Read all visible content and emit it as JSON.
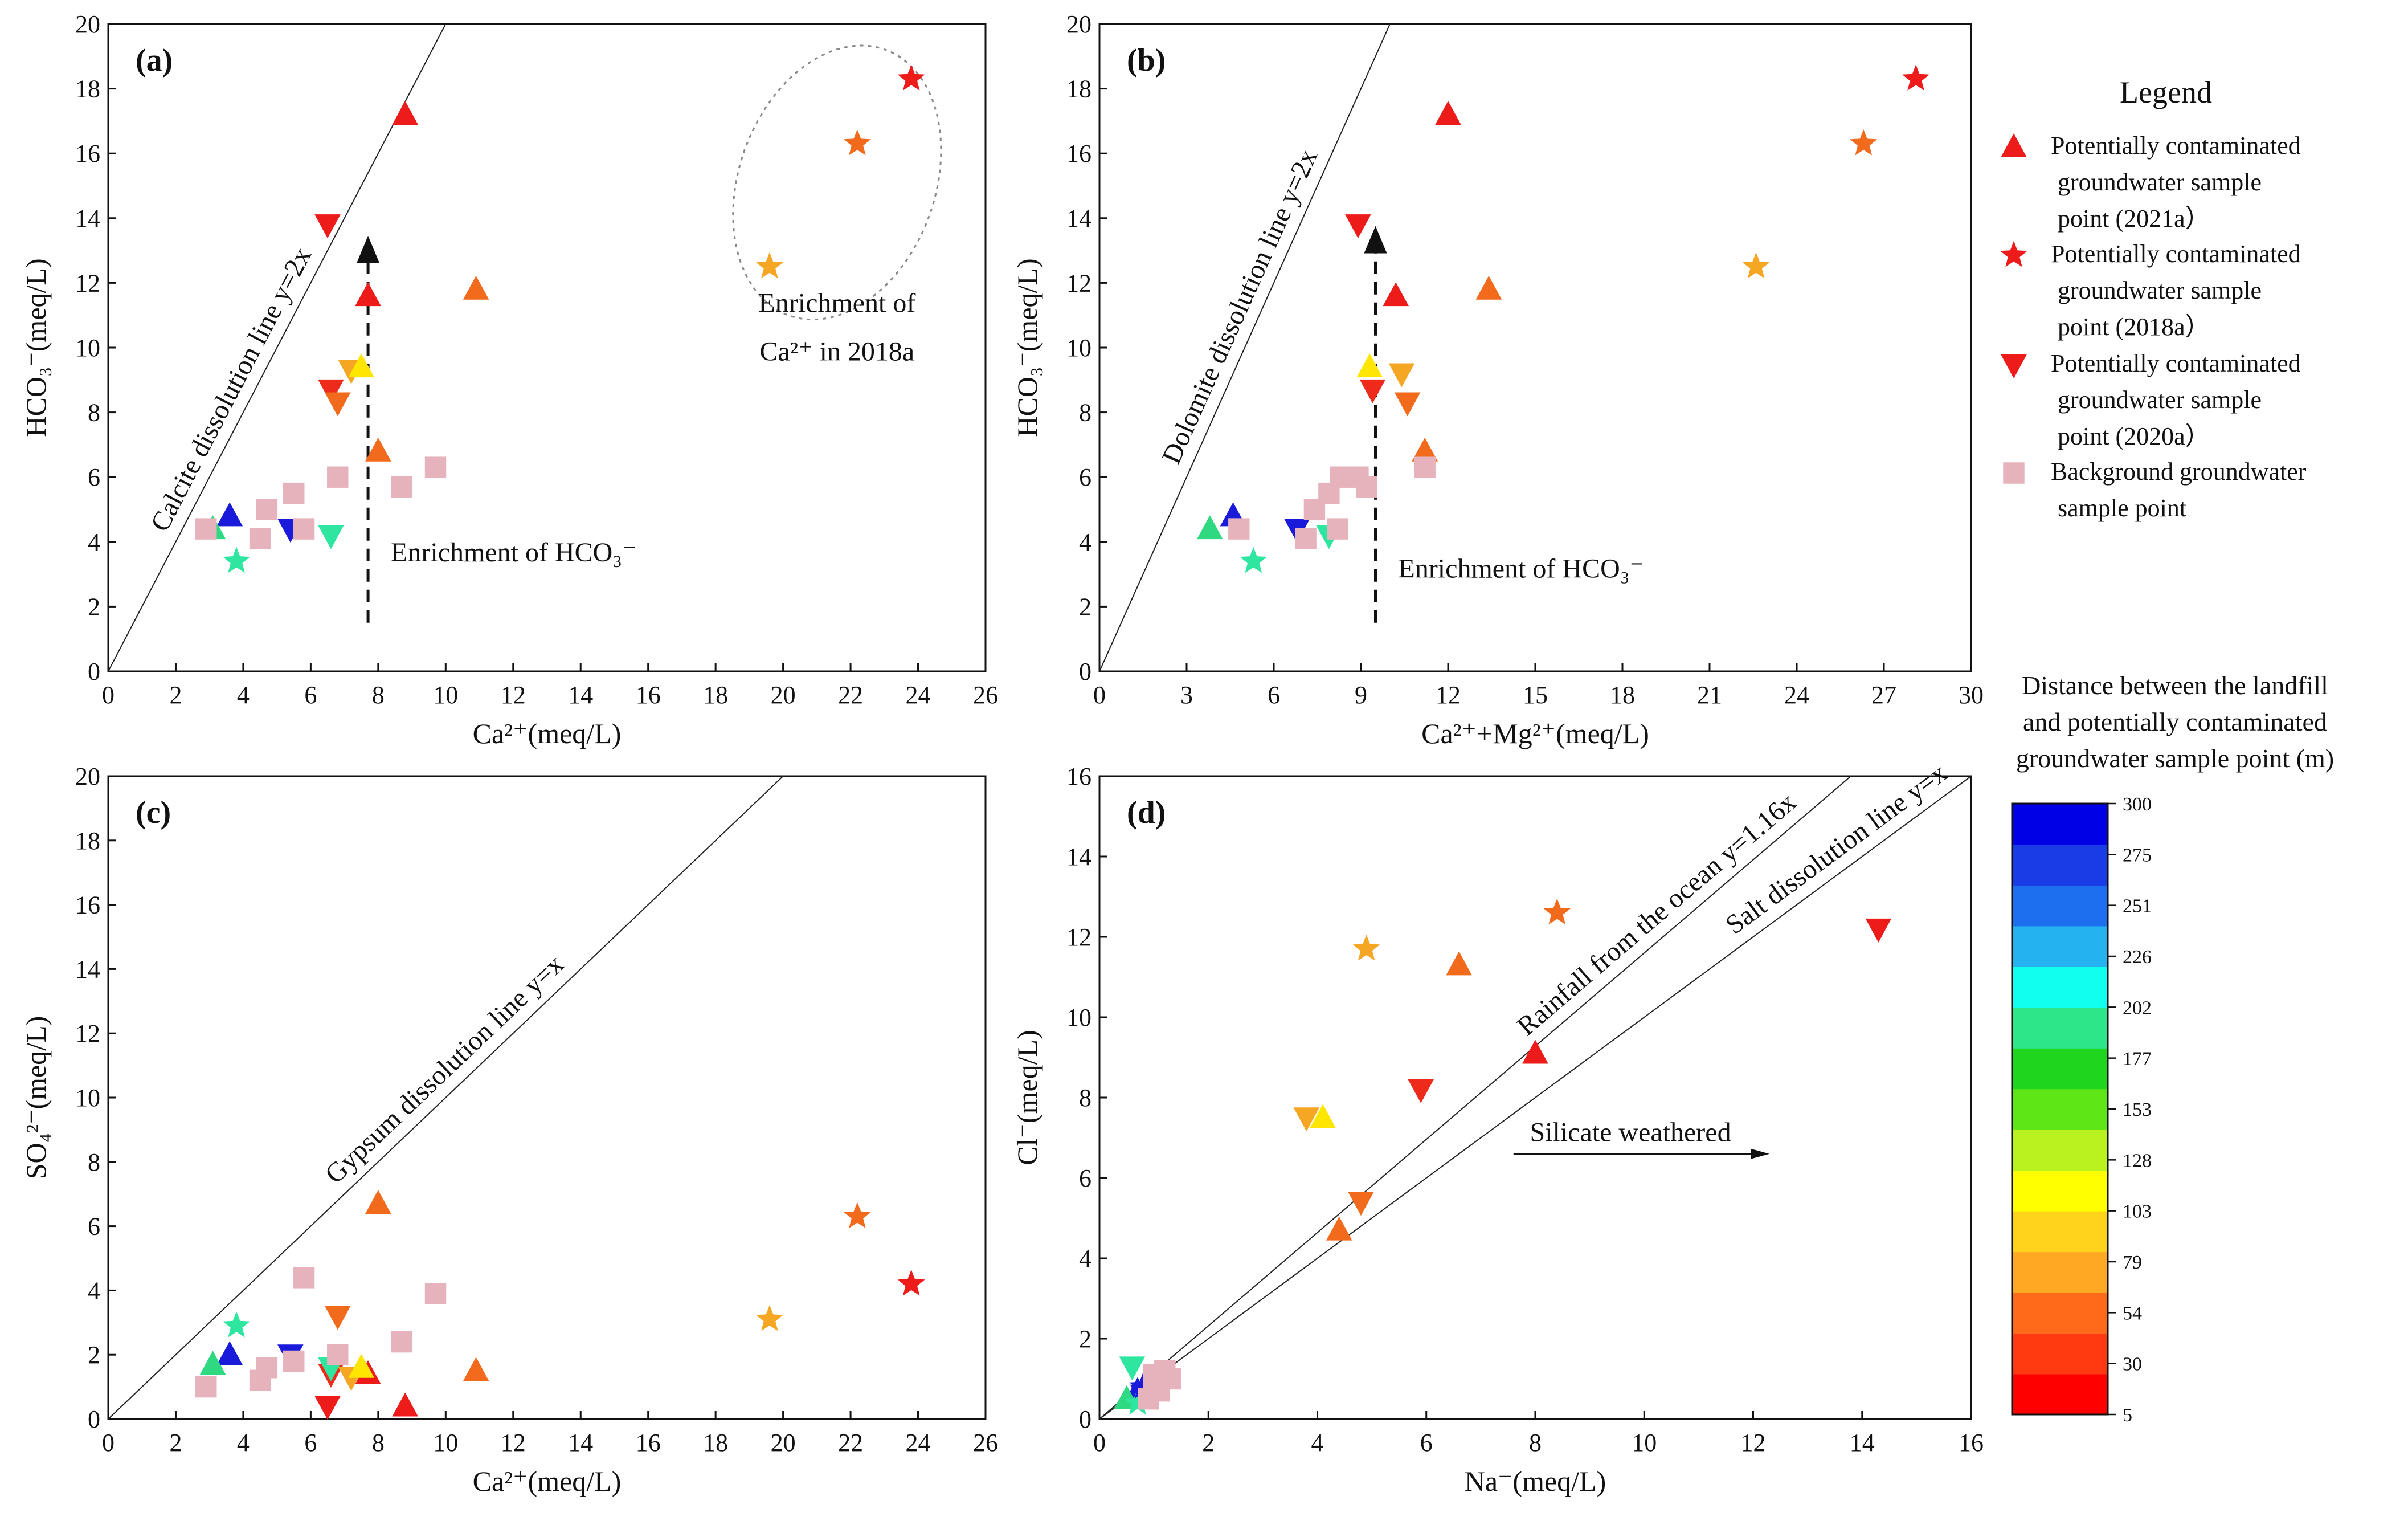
{
  "chart_data": [
    {
      "id": "a",
      "type": "scatter",
      "panel_label": "(a)",
      "xlabel": "Ca²⁺(meq/L)",
      "ylabel": "HCO₃⁻(meq/L)",
      "xlim": [
        0,
        26
      ],
      "ylim": [
        0,
        20
      ],
      "xticks": [
        0,
        2,
        4,
        6,
        8,
        10,
        12,
        14,
        16,
        18,
        20,
        22,
        24,
        26
      ],
      "yticks": [
        0,
        2,
        4,
        6,
        8,
        10,
        12,
        14,
        16,
        18,
        20
      ],
      "reference_lines": [
        {
          "label": "Calcite dissolution line y=2x",
          "slope": 2
        }
      ],
      "annotations": [
        {
          "text": "Enrichment of HCO₃⁻",
          "arrow": "vertical-up"
        },
        {
          "text_line1": "Enrichment of",
          "text_line2": "Ca²⁺ in 2018a",
          "enclosure": "ellipse"
        }
      ],
      "points": [
        {
          "x": 8.8,
          "y": 17.2,
          "marker": "triangle-up",
          "color": "#ee1b1b"
        },
        {
          "x": 7.7,
          "y": 11.6,
          "marker": "triangle-up",
          "color": "#ee1b1b"
        },
        {
          "x": 6.5,
          "y": 13.8,
          "marker": "triangle-down",
          "color": "#ee1b1b"
        },
        {
          "x": 10.9,
          "y": 11.8,
          "marker": "triangle-up",
          "color": "#f26a1b"
        },
        {
          "x": 8.0,
          "y": 6.8,
          "marker": "triangle-up",
          "color": "#f26a1b"
        },
        {
          "x": 6.6,
          "y": 8.7,
          "marker": "triangle-down",
          "color": "#ee2a1b"
        },
        {
          "x": 6.8,
          "y": 8.3,
          "marker": "triangle-down",
          "color": "#f26a1b"
        },
        {
          "x": 7.2,
          "y": 9.3,
          "marker": "triangle-down",
          "color": "#f5a623"
        },
        {
          "x": 7.5,
          "y": 9.4,
          "marker": "triangle-up",
          "color": "#ffe600"
        },
        {
          "x": 3.6,
          "y": 4.8,
          "marker": "triangle-up",
          "color": "#1a1adb"
        },
        {
          "x": 3.1,
          "y": 4.4,
          "marker": "triangle-up",
          "color": "#2ed982"
        },
        {
          "x": 5.4,
          "y": 4.4,
          "marker": "triangle-down",
          "color": "#1a1adb"
        },
        {
          "x": 6.6,
          "y": 4.2,
          "marker": "triangle-down",
          "color": "#2ee6a0"
        },
        {
          "x": 23.8,
          "y": 18.3,
          "marker": "star",
          "color": "#ee1b1b"
        },
        {
          "x": 22.2,
          "y": 16.3,
          "marker": "star",
          "color": "#f26a1b"
        },
        {
          "x": 19.6,
          "y": 12.5,
          "marker": "star",
          "color": "#f5a623"
        },
        {
          "x": 3.8,
          "y": 3.4,
          "marker": "star",
          "color": "#2ee6a0"
        },
        {
          "x": 2.9,
          "y": 4.4,
          "marker": "square",
          "color": "#e6b3bc"
        },
        {
          "x": 4.5,
          "y": 4.1,
          "marker": "square",
          "color": "#e6b3bc"
        },
        {
          "x": 4.7,
          "y": 5.0,
          "marker": "square",
          "color": "#e6b3bc"
        },
        {
          "x": 5.5,
          "y": 5.5,
          "marker": "square",
          "color": "#e6b3bc"
        },
        {
          "x": 5.8,
          "y": 4.4,
          "marker": "square",
          "color": "#e6b3bc"
        },
        {
          "x": 6.8,
          "y": 6.0,
          "marker": "square",
          "color": "#e6b3bc"
        },
        {
          "x": 8.7,
          "y": 5.7,
          "marker": "square",
          "color": "#e6b3bc"
        },
        {
          "x": 9.7,
          "y": 6.3,
          "marker": "square",
          "color": "#e6b3bc"
        }
      ]
    },
    {
      "id": "b",
      "type": "scatter",
      "panel_label": "(b)",
      "xlabel": "Ca²⁺+Mg²⁺(meq/L)",
      "ylabel": "HCO₃⁻(meq/L)",
      "xlim": [
        0,
        30
      ],
      "ylim": [
        0,
        20
      ],
      "xticks": [
        0,
        3,
        6,
        9,
        12,
        15,
        18,
        21,
        24,
        27,
        30
      ],
      "yticks": [
        0,
        2,
        4,
        6,
        8,
        10,
        12,
        14,
        16,
        18,
        20
      ],
      "reference_lines": [
        {
          "label": "Dolomite dissolution line y=2x",
          "slope": 2
        }
      ],
      "annotations": [
        {
          "text": "Enrichment of HCO₃⁻",
          "arrow": "vertical-up"
        }
      ],
      "points": [
        {
          "x": 12.0,
          "y": 17.2,
          "marker": "triangle-up",
          "color": "#ee1b1b"
        },
        {
          "x": 10.2,
          "y": 11.6,
          "marker": "triangle-up",
          "color": "#ee1b1b"
        },
        {
          "x": 8.9,
          "y": 13.8,
          "marker": "triangle-down",
          "color": "#ee1b1b"
        },
        {
          "x": 13.4,
          "y": 11.8,
          "marker": "triangle-up",
          "color": "#f26a1b"
        },
        {
          "x": 11.2,
          "y": 6.8,
          "marker": "triangle-up",
          "color": "#f26a1b"
        },
        {
          "x": 9.4,
          "y": 8.7,
          "marker": "triangle-down",
          "color": "#ee2a1b"
        },
        {
          "x": 10.6,
          "y": 8.3,
          "marker": "triangle-down",
          "color": "#f26a1b"
        },
        {
          "x": 10.4,
          "y": 9.2,
          "marker": "triangle-down",
          "color": "#f5a623"
        },
        {
          "x": 9.3,
          "y": 9.4,
          "marker": "triangle-up",
          "color": "#ffe600"
        },
        {
          "x": 4.6,
          "y": 4.8,
          "marker": "triangle-up",
          "color": "#1a1adb"
        },
        {
          "x": 3.8,
          "y": 4.4,
          "marker": "triangle-up",
          "color": "#2ed982"
        },
        {
          "x": 6.8,
          "y": 4.4,
          "marker": "triangle-down",
          "color": "#1a1adb"
        },
        {
          "x": 7.9,
          "y": 4.2,
          "marker": "triangle-down",
          "color": "#2ee6a0"
        },
        {
          "x": 28.1,
          "y": 18.3,
          "marker": "star",
          "color": "#ee1b1b"
        },
        {
          "x": 26.3,
          "y": 16.3,
          "marker": "star",
          "color": "#f26a1b"
        },
        {
          "x": 22.6,
          "y": 12.5,
          "marker": "star",
          "color": "#f5a623"
        },
        {
          "x": 5.3,
          "y": 3.4,
          "marker": "star",
          "color": "#2ee6a0"
        },
        {
          "x": 4.8,
          "y": 4.4,
          "marker": "square",
          "color": "#e6b3bc"
        },
        {
          "x": 7.1,
          "y": 4.1,
          "marker": "square",
          "color": "#e6b3bc"
        },
        {
          "x": 7.4,
          "y": 5.0,
          "marker": "square",
          "color": "#e6b3bc"
        },
        {
          "x": 7.9,
          "y": 5.5,
          "marker": "square",
          "color": "#e6b3bc"
        },
        {
          "x": 8.2,
          "y": 4.4,
          "marker": "square",
          "color": "#e6b3bc"
        },
        {
          "x": 8.3,
          "y": 6.0,
          "marker": "square",
          "color": "#e6b3bc"
        },
        {
          "x": 8.9,
          "y": 6.0,
          "marker": "square",
          "color": "#e6b3bc"
        },
        {
          "x": 9.2,
          "y": 5.7,
          "marker": "square",
          "color": "#e6b3bc"
        },
        {
          "x": 11.2,
          "y": 6.3,
          "marker": "square",
          "color": "#e6b3bc"
        }
      ]
    },
    {
      "id": "c",
      "type": "scatter",
      "panel_label": "(c)",
      "xlabel": "Ca²⁺(meq/L)",
      "ylabel": "SO₄²⁻(meq/L)",
      "xlim": [
        0,
        26
      ],
      "ylim": [
        0,
        20
      ],
      "xticks": [
        0,
        2,
        4,
        6,
        8,
        10,
        12,
        14,
        16,
        18,
        20,
        22,
        24,
        26
      ],
      "yticks": [
        0,
        2,
        4,
        6,
        8,
        10,
        12,
        14,
        16,
        18,
        20
      ],
      "reference_lines": [
        {
          "label": "Gypsum dissolution line y=x",
          "slope": 1
        }
      ],
      "annotations": [],
      "points": [
        {
          "x": 8.8,
          "y": 0.4,
          "marker": "triangle-up",
          "color": "#ee1b1b"
        },
        {
          "x": 7.7,
          "y": 1.4,
          "marker": "triangle-up",
          "color": "#ee1b1b"
        },
        {
          "x": 6.5,
          "y": 0.4,
          "marker": "triangle-down",
          "color": "#ee1b1b"
        },
        {
          "x": 10.9,
          "y": 1.5,
          "marker": "triangle-up",
          "color": "#f26a1b"
        },
        {
          "x": 8.0,
          "y": 6.7,
          "marker": "triangle-up",
          "color": "#f26a1b"
        },
        {
          "x": 6.6,
          "y": 1.4,
          "marker": "triangle-down",
          "color": "#ee2a1b"
        },
        {
          "x": 6.8,
          "y": 3.2,
          "marker": "triangle-down",
          "color": "#f26a1b"
        },
        {
          "x": 7.2,
          "y": 1.3,
          "marker": "triangle-down",
          "color": "#f5a623"
        },
        {
          "x": 7.5,
          "y": 1.6,
          "marker": "triangle-up",
          "color": "#ffe600"
        },
        {
          "x": 3.6,
          "y": 2.0,
          "marker": "triangle-up",
          "color": "#1a1adb"
        },
        {
          "x": 3.1,
          "y": 1.7,
          "marker": "triangle-up",
          "color": "#2ed982"
        },
        {
          "x": 5.4,
          "y": 2.0,
          "marker": "triangle-down",
          "color": "#1a1adb"
        },
        {
          "x": 6.6,
          "y": 1.6,
          "marker": "triangle-down",
          "color": "#2ee6a0"
        },
        {
          "x": 23.8,
          "y": 4.2,
          "marker": "star",
          "color": "#ee1b1b"
        },
        {
          "x": 22.2,
          "y": 6.3,
          "marker": "star",
          "color": "#f26a1b"
        },
        {
          "x": 19.6,
          "y": 3.1,
          "marker": "star",
          "color": "#f5a623"
        },
        {
          "x": 3.8,
          "y": 2.9,
          "marker": "star",
          "color": "#2ee6a0"
        },
        {
          "x": 2.9,
          "y": 1.0,
          "marker": "square",
          "color": "#e6b3bc"
        },
        {
          "x": 4.5,
          "y": 1.2,
          "marker": "square",
          "color": "#e6b3bc"
        },
        {
          "x": 4.7,
          "y": 1.6,
          "marker": "square",
          "color": "#e6b3bc"
        },
        {
          "x": 5.5,
          "y": 1.8,
          "marker": "square",
          "color": "#e6b3bc"
        },
        {
          "x": 5.8,
          "y": 4.4,
          "marker": "square",
          "color": "#e6b3bc"
        },
        {
          "x": 6.8,
          "y": 2.0,
          "marker": "square",
          "color": "#e6b3bc"
        },
        {
          "x": 8.7,
          "y": 2.4,
          "marker": "square",
          "color": "#e6b3bc"
        },
        {
          "x": 9.7,
          "y": 3.9,
          "marker": "square",
          "color": "#e6b3bc"
        }
      ]
    },
    {
      "id": "d",
      "type": "scatter",
      "panel_label": "(d)",
      "xlabel": "Na⁻(meq/L)",
      "ylabel": "Cl⁻(meq/L)",
      "xlim": [
        0,
        16
      ],
      "ylim": [
        0,
        16
      ],
      "xticks": [
        0,
        2,
        4,
        6,
        8,
        10,
        12,
        14,
        16
      ],
      "yticks": [
        0,
        2,
        4,
        6,
        8,
        10,
        12,
        14,
        16
      ],
      "reference_lines": [
        {
          "label": "Rainfall from the ocean y=1.16x",
          "slope": 1.16
        },
        {
          "label": "Salt dissolution line y=x",
          "slope": 1
        }
      ],
      "annotations": [
        {
          "text": "Silicate weathered",
          "arrow": "horizontal-right"
        }
      ],
      "points": [
        {
          "x": 8.0,
          "y": 9.1,
          "marker": "triangle-up",
          "color": "#ee1b1b"
        },
        {
          "x": 14.3,
          "y": 12.2,
          "marker": "triangle-down",
          "color": "#ee1b1b"
        },
        {
          "x": 6.6,
          "y": 11.3,
          "marker": "triangle-up",
          "color": "#f26a1b"
        },
        {
          "x": 4.4,
          "y": 4.7,
          "marker": "triangle-up",
          "color": "#f26a1b"
        },
        {
          "x": 5.9,
          "y": 8.2,
          "marker": "triangle-down",
          "color": "#ee2a1b"
        },
        {
          "x": 4.8,
          "y": 5.4,
          "marker": "triangle-down",
          "color": "#f26a1b"
        },
        {
          "x": 3.8,
          "y": 7.5,
          "marker": "triangle-down",
          "color": "#f5a623"
        },
        {
          "x": 4.1,
          "y": 7.5,
          "marker": "triangle-up",
          "color": "#ffe600"
        },
        {
          "x": 8.4,
          "y": 12.6,
          "marker": "star",
          "color": "#f26a1b"
        },
        {
          "x": 4.9,
          "y": 11.7,
          "marker": "star",
          "color": "#f5a623"
        },
        {
          "x": 0.7,
          "y": 0.7,
          "marker": "triangle-up",
          "color": "#1a1adb"
        },
        {
          "x": 0.5,
          "y": 0.5,
          "marker": "triangle-up",
          "color": "#2ed982"
        },
        {
          "x": 0.8,
          "y": 0.6,
          "marker": "triangle-down",
          "color": "#1a1adb"
        },
        {
          "x": 0.6,
          "y": 1.3,
          "marker": "triangle-down",
          "color": "#2ee6a0"
        },
        {
          "x": 0.7,
          "y": 0.4,
          "marker": "star",
          "color": "#2ee6a0"
        },
        {
          "x": 0.8,
          "y": 0.8,
          "marker": "star",
          "color": "#1a1adb"
        },
        {
          "x": 1.0,
          "y": 1.1,
          "marker": "square",
          "color": "#e6b3bc"
        },
        {
          "x": 1.1,
          "y": 0.7,
          "marker": "square",
          "color": "#e6b3bc"
        },
        {
          "x": 1.2,
          "y": 1.2,
          "marker": "square",
          "color": "#e6b3bc"
        },
        {
          "x": 1.3,
          "y": 1.0,
          "marker": "square",
          "color": "#e6b3bc"
        },
        {
          "x": 0.9,
          "y": 0.5,
          "marker": "square",
          "color": "#e6b3bc"
        },
        {
          "x": 1.0,
          "y": 0.9,
          "marker": "square",
          "color": "#e6b3bc"
        }
      ]
    }
  ],
  "legend": {
    "title": "Legend",
    "entries": [
      {
        "marker": "triangle-up",
        "color": "#ee1b1b",
        "lines": [
          "Potentially contaminated",
          "groundwater sample",
          "point (2021a）"
        ]
      },
      {
        "marker": "star",
        "color": "#ee1b1b",
        "lines": [
          "Potentially contaminated",
          "groundwater sample",
          "point (2018a）"
        ]
      },
      {
        "marker": "triangle-down",
        "color": "#ee1b1b",
        "lines": [
          "Potentially contaminated",
          "groundwater sample",
          "point (2020a）"
        ]
      },
      {
        "marker": "square",
        "color": "#e6b3bc",
        "lines": [
          "Background groundwater",
          "sample point"
        ]
      }
    ]
  },
  "colorbar": {
    "title_lines": [
      "Distance between the landfill",
      "and  potentially contaminated",
      "groundwater sample point (m)"
    ],
    "ticks": [
      "300",
      "275",
      "251",
      "226",
      "202",
      "177",
      "153",
      "128",
      "103",
      "79",
      "54",
      "30",
      "5"
    ],
    "colors": [
      "#ff0000",
      "#ff3a10",
      "#ff6a1a",
      "#ffa824",
      "#ffd21c",
      "#ffff00",
      "#b9f21f",
      "#5ee617",
      "#1dd61d",
      "#2ee68a",
      "#10ffee",
      "#24b2f0",
      "#1e6ef0",
      "#1a3ce6",
      "#0000e6"
    ]
  }
}
